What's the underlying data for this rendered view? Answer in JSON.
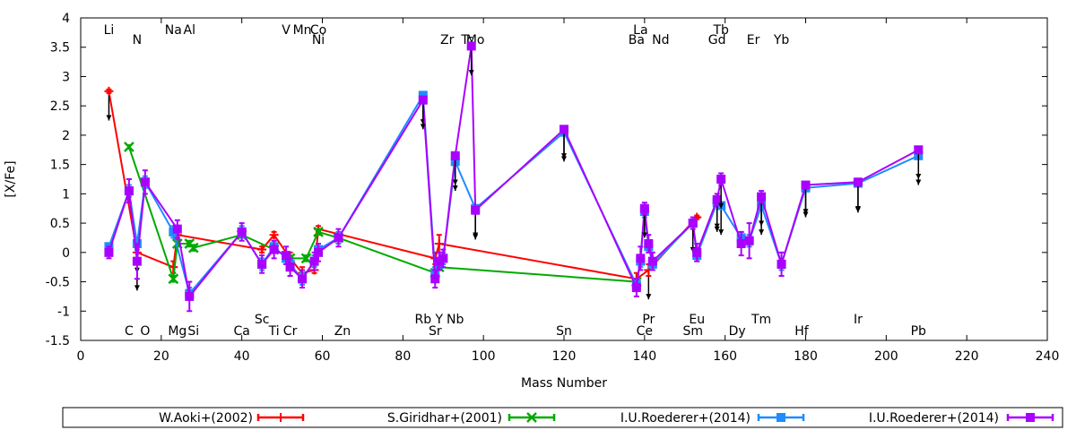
{
  "chart_data": {
    "type": "scatter",
    "xlabel": "Mass Number",
    "ylabel": "[X/Fe]",
    "xlim": [
      0,
      240
    ],
    "ylim": [
      -1.5,
      4
    ],
    "xticks": [
      "0",
      "20",
      "40",
      "60",
      "80",
      "100",
      "120",
      "140",
      "160",
      "180",
      "200",
      "220",
      "240"
    ],
    "yticks": [
      "-1.5",
      "-1",
      "-0.5",
      "0",
      "0.5",
      "1",
      "1.5",
      "2",
      "2.5",
      "3",
      "3.5",
      "4"
    ],
    "grid": false,
    "legend_position": "bottom",
    "elements_top": [
      {
        "x": 7,
        "row": 1,
        "label": "Li"
      },
      {
        "x": 14,
        "row": 2,
        "label": "N"
      },
      {
        "x": 23,
        "row": 1,
        "label": "Na"
      },
      {
        "x": 27,
        "row": 1,
        "label": "Al"
      },
      {
        "x": 51,
        "row": 1,
        "label": "V"
      },
      {
        "x": 55,
        "row": 1,
        "label": "Mn"
      },
      {
        "x": 59,
        "row": 1,
        "label": "Co"
      },
      {
        "x": 59,
        "row": 2,
        "label": "Ni"
      },
      {
        "x": 91,
        "row": 2,
        "label": "Zr"
      },
      {
        "x": 96,
        "row": 2,
        "label": "Tc"
      },
      {
        "x": 98,
        "row": 2,
        "label": "Mo"
      },
      {
        "x": 139,
        "row": 1,
        "label": "La"
      },
      {
        "x": 138,
        "row": 2,
        "label": "Ba"
      },
      {
        "x": 144,
        "row": 2,
        "label": "Nd"
      },
      {
        "x": 159,
        "row": 1,
        "label": "Tb"
      },
      {
        "x": 158,
        "row": 2,
        "label": "Gd"
      },
      {
        "x": 167,
        "row": 2,
        "label": "Er"
      },
      {
        "x": 174,
        "row": 2,
        "label": "Yb"
      }
    ],
    "elements_bottom": [
      {
        "x": 12,
        "row": 2,
        "label": "C"
      },
      {
        "x": 16,
        "row": 2,
        "label": "O"
      },
      {
        "x": 24,
        "row": 2,
        "label": "Mg"
      },
      {
        "x": 28,
        "row": 2,
        "label": "Si"
      },
      {
        "x": 40,
        "row": 2,
        "label": "Ca"
      },
      {
        "x": 45,
        "row": 1,
        "label": "Sc"
      },
      {
        "x": 48,
        "row": 2,
        "label": "Ti"
      },
      {
        "x": 52,
        "row": 2,
        "label": "Cr"
      },
      {
        "x": 65,
        "row": 2,
        "label": "Zn"
      },
      {
        "x": 85,
        "row": 1,
        "label": "Rb"
      },
      {
        "x": 89,
        "row": 1,
        "label": "Y"
      },
      {
        "x": 88,
        "row": 2,
        "label": "Sr"
      },
      {
        "x": 93,
        "row": 1,
        "label": "Nb"
      },
      {
        "x": 120,
        "row": 2,
        "label": "Sn"
      },
      {
        "x": 141,
        "row": 1,
        "label": "Pr"
      },
      {
        "x": 140,
        "row": 2,
        "label": "Ce"
      },
      {
        "x": 153,
        "row": 1,
        "label": "Eu"
      },
      {
        "x": 152,
        "row": 2,
        "label": "Sm"
      },
      {
        "x": 169,
        "row": 1,
        "label": "Tm"
      },
      {
        "x": 163,
        "row": 2,
        "label": "Dy"
      },
      {
        "x": 179,
        "row": 2,
        "label": "Hf"
      },
      {
        "x": 193,
        "row": 1,
        "label": "Ir"
      },
      {
        "x": 208,
        "row": 2,
        "label": "Pb"
      }
    ],
    "series": [
      {
        "name": "W.Aoki+(2002)",
        "color": "#ff0000",
        "marker": "plus",
        "points": [
          {
            "x": 7,
            "y": 2.75,
            "err": 0.03,
            "upper_limit": true
          },
          {
            "x": 14,
            "y": 0.0,
            "err": 0.1
          },
          {
            "x": 23,
            "y": -0.25,
            "err": 0.1
          },
          {
            "x": 24,
            "y": 0.3,
            "err": 0.1
          },
          {
            "x": 45,
            "y": 0.05,
            "err": 0.05
          },
          {
            "x": 48,
            "y": 0.3,
            "err": 0.05
          },
          {
            "x": 52,
            "y": -0.1,
            "err": 0.1
          },
          {
            "x": 55,
            "y": -0.35,
            "err": 0.1
          },
          {
            "x": 58,
            "y": -0.3,
            "err": 0.05
          },
          {
            "x": 59,
            "y": 0.4,
            "err": 0.05
          },
          {
            "x": 88,
            "y": -0.1,
            "err": 0.1
          },
          {
            "x": 89,
            "y": 0.15,
            "err": 0.15
          },
          {
            "x": 138,
            "y": -0.45,
            "err": 0.1
          },
          {
            "x": 141,
            "y": -0.3,
            "err": 0.1,
            "upper_limit": true
          },
          {
            "x": 153,
            "y": 0.6,
            "err": 0.03
          }
        ]
      },
      {
        "name": "S.Giridhar+(2001)",
        "color": "#00aa00",
        "marker": "cross",
        "points": [
          {
            "x": 12,
            "y": 1.8,
            "err": 0.03
          },
          {
            "x": 23,
            "y": -0.45,
            "err": 0.05
          },
          {
            "x": 24,
            "y": 0.15,
            "err": 0.05
          },
          {
            "x": 27,
            "y": 0.15,
            "err": 0.05
          },
          {
            "x": 28,
            "y": 0.08,
            "err": 0.05
          },
          {
            "x": 40,
            "y": 0.3,
            "err": 0.05
          },
          {
            "x": 48,
            "y": 0.05,
            "err": 0.05
          },
          {
            "x": 52,
            "y": -0.1,
            "err": 0.05
          },
          {
            "x": 56,
            "y": -0.1,
            "err": 0.05
          },
          {
            "x": 59,
            "y": 0.35,
            "err": 0.05
          },
          {
            "x": 64,
            "y": 0.25,
            "err": 0.05
          },
          {
            "x": 88,
            "y": -0.35,
            "err": 0.1
          },
          {
            "x": 89,
            "y": -0.25,
            "err": 0.05
          },
          {
            "x": 138,
            "y": -0.5,
            "err": 0.05
          }
        ]
      },
      {
        "name": "I.U.Roederer+(2014)",
        "color": "#1e8cff",
        "marker": "square",
        "points": [
          {
            "x": 7,
            "y": 0.1,
            "err": 0.03
          },
          {
            "x": 12,
            "y": 1.05,
            "err": 0.1
          },
          {
            "x": 14,
            "y": 0.15,
            "err": 0.1,
            "upper_limit": true
          },
          {
            "x": 16,
            "y": 1.2,
            "err": 0.1
          },
          {
            "x": 23,
            "y": 0.35,
            "err": 0.1
          },
          {
            "x": 27,
            "y": -0.7,
            "err": 0.1
          },
          {
            "x": 40,
            "y": 0.35,
            "err": 0.1
          },
          {
            "x": 45,
            "y": -0.2,
            "err": 0.1
          },
          {
            "x": 48,
            "y": 0.1,
            "err": 0.1
          },
          {
            "x": 51,
            "y": -0.1,
            "err": 0.1
          },
          {
            "x": 52,
            "y": -0.2,
            "err": 0.1
          },
          {
            "x": 55,
            "y": -0.45,
            "err": 0.1
          },
          {
            "x": 58,
            "y": -0.15,
            "err": 0.1
          },
          {
            "x": 59,
            "y": 0.05,
            "err": 0.1
          },
          {
            "x": 64,
            "y": 0.25,
            "err": 0.1
          },
          {
            "x": 85,
            "y": 2.68,
            "err": 0.03,
            "upper_limit": true
          },
          {
            "x": 88,
            "y": -0.35,
            "err": 0.1
          },
          {
            "x": 89,
            "y": -0.2,
            "err": 0.1
          },
          {
            "x": 90,
            "y": -0.1,
            "err": 0.1
          },
          {
            "x": 93,
            "y": 1.55,
            "err": 0.03,
            "upper_limit": true
          },
          {
            "x": 98,
            "y": 0.75,
            "err": 0.03,
            "upper_limit": true
          },
          {
            "x": 120,
            "y": 2.05,
            "err": 0.03,
            "upper_limit": true
          },
          {
            "x": 138,
            "y": -0.55,
            "err": 0.1
          },
          {
            "x": 139,
            "y": -0.15,
            "err": 0.1
          },
          {
            "x": 140,
            "y": 0.7,
            "err": 0.1
          },
          {
            "x": 141,
            "y": 0.1,
            "err": 0.1
          },
          {
            "x": 142,
            "y": -0.2,
            "err": 0.1
          },
          {
            "x": 152,
            "y": 0.5,
            "err": 0.05
          },
          {
            "x": 153,
            "y": -0.05,
            "err": 0.1
          },
          {
            "x": 158,
            "y": 0.85,
            "err": 0.03,
            "upper_limit": true
          },
          {
            "x": 159,
            "y": 0.8,
            "err": 0.03,
            "upper_limit": true
          },
          {
            "x": 164,
            "y": 0.25,
            "err": 0.1
          },
          {
            "x": 166,
            "y": 0.2,
            "err": 0.1
          },
          {
            "x": 169,
            "y": 0.8,
            "err": 0.03,
            "upper_limit": true
          },
          {
            "x": 174,
            "y": -0.2,
            "err": 0.1
          },
          {
            "x": 180,
            "y": 1.1,
            "err": 0.03,
            "upper_limit": true
          },
          {
            "x": 193,
            "y": 1.18,
            "err": 0.03,
            "upper_limit": true
          },
          {
            "x": 208,
            "y": 1.65,
            "err": 0.03,
            "upper_limit": true
          }
        ]
      },
      {
        "name": "I.U.Roederer+(2014)",
        "color": "#aa00ff",
        "marker": "square",
        "points": [
          {
            "x": 7,
            "y": 0.0,
            "err": 0.1
          },
          {
            "x": 12,
            "y": 1.05,
            "err": 0.2
          },
          {
            "x": 14,
            "y": -0.15,
            "err": 0.3,
            "upper_limit": true
          },
          {
            "x": 16,
            "y": 1.2,
            "err": 0.2
          },
          {
            "x": 24,
            "y": 0.4,
            "err": 0.15
          },
          {
            "x": 27,
            "y": -0.75,
            "err": 0.25
          },
          {
            "x": 40,
            "y": 0.35,
            "err": 0.15
          },
          {
            "x": 45,
            "y": -0.2,
            "err": 0.15
          },
          {
            "x": 48,
            "y": 0.05,
            "err": 0.15
          },
          {
            "x": 51,
            "y": -0.05,
            "err": 0.15
          },
          {
            "x": 52,
            "y": -0.25,
            "err": 0.15
          },
          {
            "x": 55,
            "y": -0.45,
            "err": 0.15
          },
          {
            "x": 58,
            "y": -0.15,
            "err": 0.15
          },
          {
            "x": 59,
            "y": 0.0,
            "err": 0.15
          },
          {
            "x": 64,
            "y": 0.25,
            "err": 0.15
          },
          {
            "x": 85,
            "y": 2.6,
            "err": 0.03,
            "upper_limit": true
          },
          {
            "x": 88,
            "y": -0.45,
            "err": 0.15
          },
          {
            "x": 89,
            "y": -0.15,
            "err": 0.15
          },
          {
            "x": 90,
            "y": -0.1,
            "err": 0.15
          },
          {
            "x": 93,
            "y": 1.65,
            "err": 0.05,
            "upper_limit": true
          },
          {
            "x": 97,
            "y": 3.52,
            "err": 0.03,
            "upper_limit": true
          },
          {
            "x": 98,
            "y": 0.72,
            "err": 0.05,
            "upper_limit": true
          },
          {
            "x": 120,
            "y": 2.1,
            "err": 0.03,
            "upper_limit": true
          },
          {
            "x": 138,
            "y": -0.6,
            "err": 0.15
          },
          {
            "x": 139,
            "y": -0.1,
            "err": 0.2
          },
          {
            "x": 140,
            "y": 0.75,
            "err": 0.1,
            "upper_limit": true
          },
          {
            "x": 141,
            "y": 0.15,
            "err": 0.15
          },
          {
            "x": 142,
            "y": -0.15,
            "err": 0.15
          },
          {
            "x": 152,
            "y": 0.5,
            "err": 0.1,
            "upper_limit": true
          },
          {
            "x": 153,
            "y": 0.0,
            "err": 0.15
          },
          {
            "x": 158,
            "y": 0.9,
            "err": 0.1,
            "upper_limit": true
          },
          {
            "x": 159,
            "y": 1.25,
            "err": 0.1,
            "upper_limit": true
          },
          {
            "x": 164,
            "y": 0.15,
            "err": 0.2
          },
          {
            "x": 166,
            "y": 0.2,
            "err": 0.3
          },
          {
            "x": 169,
            "y": 0.95,
            "err": 0.1,
            "upper_limit": true
          },
          {
            "x": 174,
            "y": -0.2,
            "err": 0.2
          },
          {
            "x": 180,
            "y": 1.15,
            "err": 0.05,
            "upper_limit": true
          },
          {
            "x": 193,
            "y": 1.2,
            "err": 0.05,
            "upper_limit": true
          },
          {
            "x": 208,
            "y": 1.75,
            "err": 0.05,
            "upper_limit": true
          }
        ]
      }
    ]
  }
}
